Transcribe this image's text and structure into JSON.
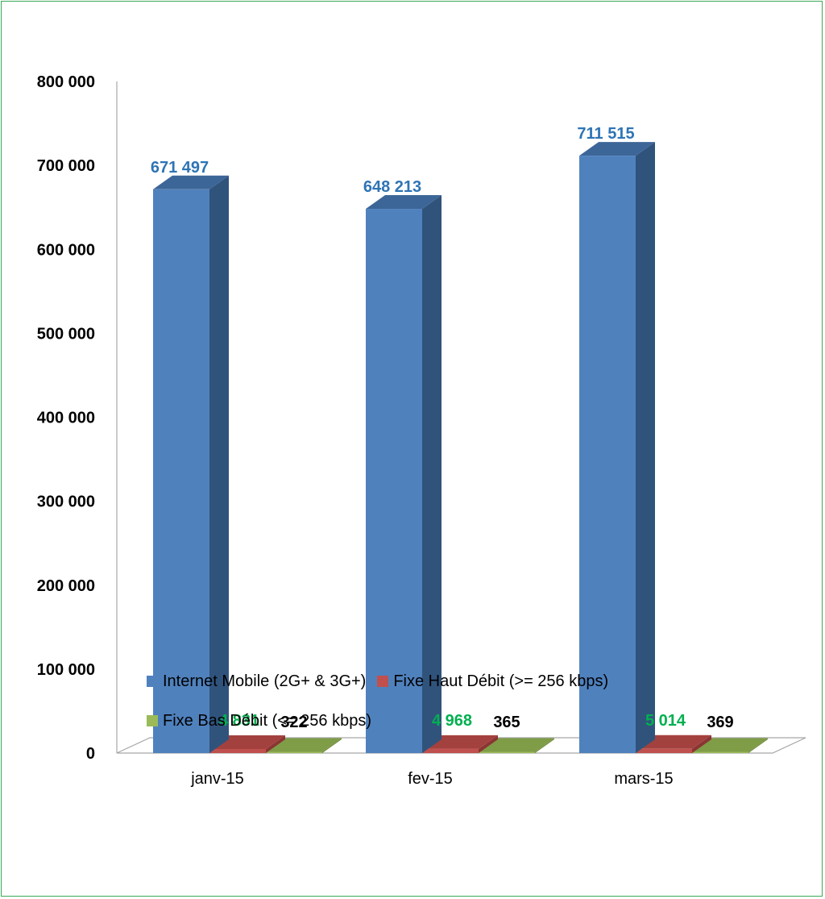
{
  "colors": {
    "frame": "#3aa858",
    "series_front": [
      "#4f81bd",
      "#c0504d",
      "#9bbb59"
    ],
    "series_side": [
      "#30537c",
      "#8a3533",
      "#6e8a3a"
    ],
    "series_top": [
      "#3d6698",
      "#a3413e",
      "#7f9c47"
    ],
    "label_colors": [
      "#2e74b5",
      "#00b050",
      "#000000"
    ]
  },
  "chart_data": {
    "type": "bar",
    "style": "3d-clustered-column",
    "categories": [
      "janv-15",
      "fev-15",
      "mars-15"
    ],
    "series": [
      {
        "name": "Internet Mobile (2G+ & 3G+)",
        "values": [
          671497,
          648213,
          711515
        ],
        "labels": [
          "671 497",
          "648 213",
          "711 515"
        ]
      },
      {
        "name": "Fixe Haut Débit (>= 256 kbps)",
        "values": [
          4831,
          4968,
          5014
        ],
        "labels": [
          "4 831",
          "4 968",
          "5 014"
        ]
      },
      {
        "name": "Fixe Bas Débit (<= 256 kbps)",
        "values": [
          322,
          365,
          369
        ],
        "labels": [
          "322",
          "365",
          "369"
        ]
      }
    ],
    "yticks": [
      "0",
      "100 000",
      "200 000",
      "300 000",
      "400 000",
      "500 000",
      "600 000",
      "700 000",
      "800 000"
    ],
    "ylim": [
      0,
      800000
    ],
    "grid": false,
    "legend_position": "bottom",
    "title": "",
    "xlabel": "",
    "ylabel": ""
  }
}
